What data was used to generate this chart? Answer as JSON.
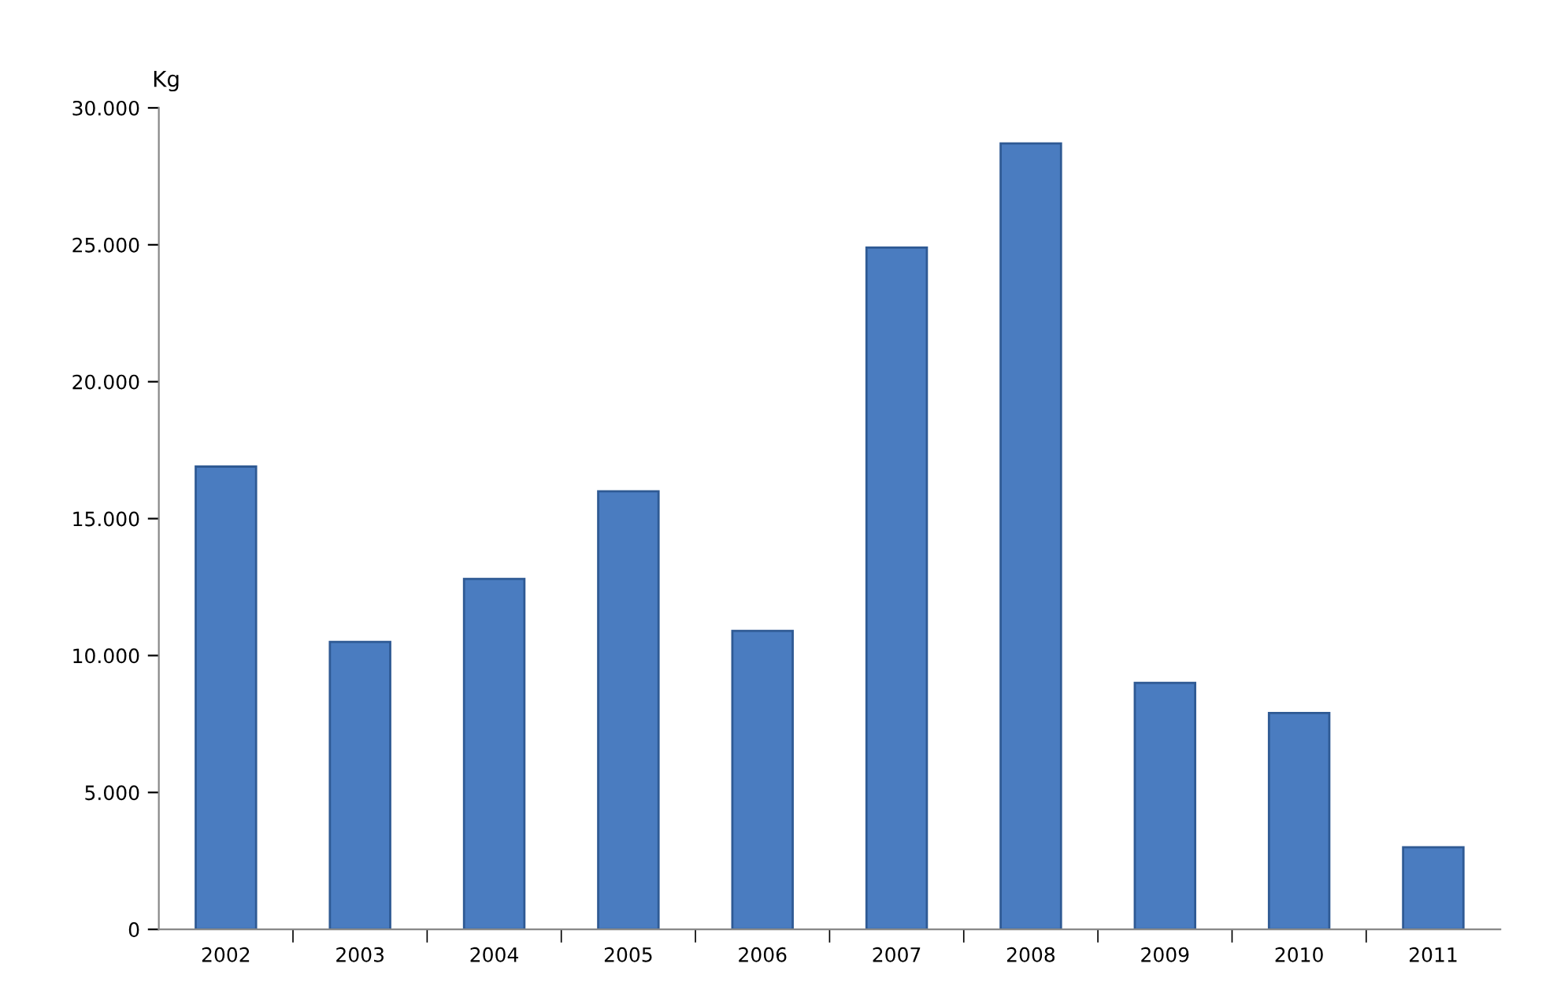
{
  "chart_data": {
    "type": "bar",
    "ylabel": "Kg",
    "categories": [
      "2002",
      "2003",
      "2004",
      "2005",
      "2006",
      "2007",
      "2008",
      "2009",
      "2010",
      "2011"
    ],
    "values": [
      16900,
      10500,
      12800,
      16000,
      10900,
      24900,
      28700,
      9000,
      7900,
      3000
    ],
    "color": "#4a7cc0",
    "ylim": [
      0,
      30000
    ],
    "yticks": [
      {
        "value": 0,
        "label": "0"
      },
      {
        "value": 5000,
        "label": "5.000"
      },
      {
        "value": 10000,
        "label": "10.000"
      },
      {
        "value": 15000,
        "label": "15.000"
      },
      {
        "value": 20000,
        "label": "20.000"
      },
      {
        "value": 25000,
        "label": "25.000"
      },
      {
        "value": 30000,
        "label": "30.000"
      }
    ],
    "grid": false,
    "legend": false
  }
}
